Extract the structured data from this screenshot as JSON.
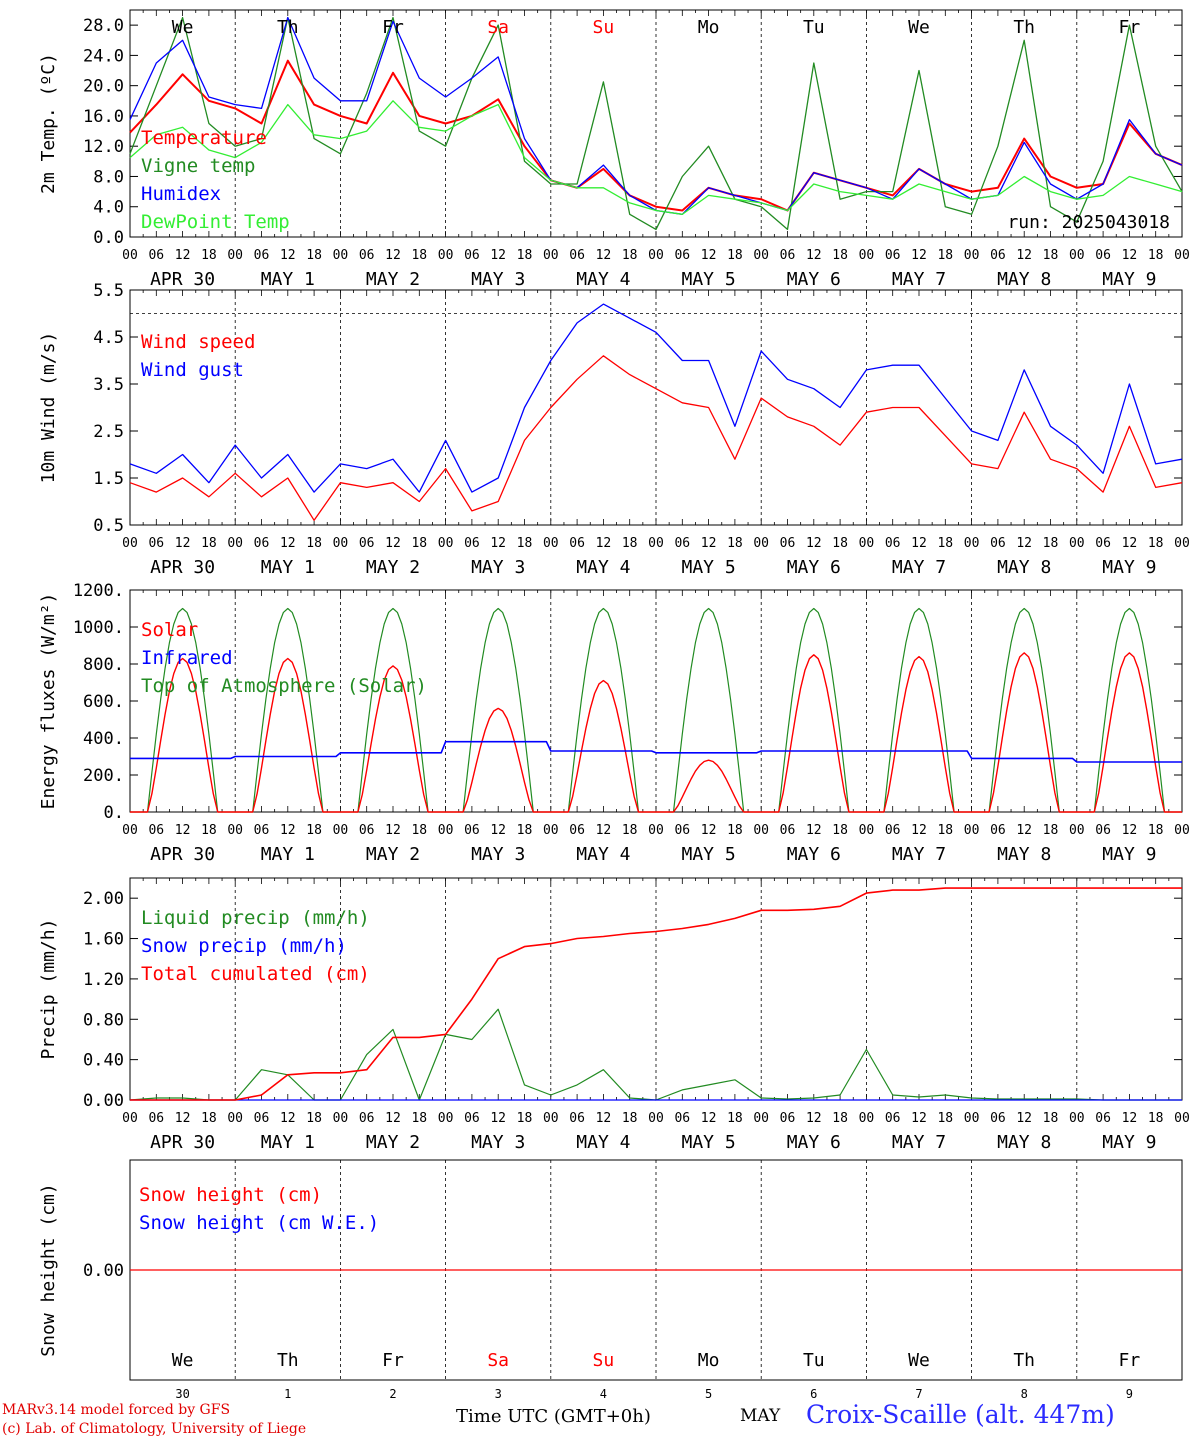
{
  "footer": {
    "credit_line1": "MARv3.14 model forced by GFS",
    "credit_line2": "(c) Lab. of Climatology, University of Liege",
    "xlabel": "Time UTC (GMT+0h)",
    "month": "MAY",
    "station": "Croix-Scaille (alt. 447m)"
  },
  "colors": {
    "red": "#ff0000",
    "green": "#228b22",
    "blue": "#0000ff",
    "lightgreen": "#33ee33",
    "weekend": "#ff0000",
    "weekday": "#000000"
  },
  "days": [
    {
      "abbr": "We",
      "weekend": false,
      "date": "APR 30",
      "daynum": "30"
    },
    {
      "abbr": "Th",
      "weekend": false,
      "date": "MAY  1",
      "daynum": "1"
    },
    {
      "abbr": "Fr",
      "weekend": false,
      "date": "MAY  2",
      "daynum": "2"
    },
    {
      "abbr": "Sa",
      "weekend": true,
      "date": "MAY  3",
      "daynum": "3"
    },
    {
      "abbr": "Su",
      "weekend": true,
      "date": "MAY  4",
      "daynum": "4"
    },
    {
      "abbr": "Mo",
      "weekend": false,
      "date": "MAY  5",
      "daynum": "5"
    },
    {
      "abbr": "Tu",
      "weekend": false,
      "date": "MAY  6",
      "daynum": "6"
    },
    {
      "abbr": "We",
      "weekend": false,
      "date": "MAY  7",
      "daynum": "7"
    },
    {
      "abbr": "Th",
      "weekend": false,
      "date": "MAY  8",
      "daynum": "8"
    },
    {
      "abbr": "Fr",
      "weekend": false,
      "date": "MAY  9",
      "daynum": "9"
    }
  ],
  "hour_ticks": [
    "00",
    "06",
    "12",
    "18"
  ],
  "chart_data": [
    {
      "type": "line",
      "ylabel": "2m Temp. (ºC)",
      "ylim": [
        0,
        30
      ],
      "yticks": [
        "0.0",
        "4.0",
        "8.0",
        "12.0",
        "16.0",
        "20.0",
        "24.0",
        "28.0"
      ],
      "annotation": "run: 2025043018",
      "x_hours": [
        0,
        6,
        12,
        18,
        24,
        30,
        36,
        42,
        48,
        54,
        60,
        66,
        72,
        78,
        84,
        90,
        96,
        102,
        108,
        114,
        120,
        126,
        132,
        138,
        144,
        150,
        156,
        162,
        168,
        174,
        180,
        186,
        192,
        198,
        204,
        210,
        216,
        222,
        228,
        234,
        240
      ],
      "series": [
        {
          "name": "Temperature",
          "color": "#ff0000",
          "values": [
            13.8,
            17.5,
            21.5,
            18.0,
            17.0,
            15.0,
            23.3,
            17.5,
            16.0,
            15.0,
            21.7,
            16.0,
            15.0,
            16.0,
            18.2,
            12.0,
            7.5,
            6.5,
            9.0,
            5.5,
            4.0,
            3.5,
            6.5,
            5.5,
            5.0,
            3.5,
            8.5,
            7.5,
            6.5,
            5.5,
            9.0,
            7.0,
            6.0,
            6.5,
            13.0,
            8.0,
            6.5,
            7.0,
            15.0,
            11.0,
            9.5
          ]
        },
        {
          "name": "Vigne temp",
          "color": "#228b22",
          "values": [
            11.0,
            20.0,
            29.0,
            15.0,
            12.0,
            13.0,
            29.0,
            13.0,
            11.0,
            19.0,
            29.0,
            14.0,
            12.0,
            21.0,
            28.0,
            10.0,
            7.0,
            7.0,
            20.5,
            3.0,
            1.0,
            8.0,
            12.0,
            5.0,
            4.0,
            1.0,
            23.0,
            5.0,
            6.0,
            6.0,
            22.0,
            4.0,
            3.0,
            12.0,
            26.0,
            4.0,
            2.0,
            10.0,
            28.0,
            12.0,
            6.0
          ]
        },
        {
          "name": "Humidex",
          "color": "#0000ff",
          "values": [
            15.5,
            23.0,
            26.0,
            18.5,
            17.5,
            17.0,
            29.0,
            21.0,
            18.0,
            18.0,
            28.5,
            21.0,
            18.5,
            21.0,
            23.8,
            13.0,
            7.5,
            6.5,
            9.5,
            5.5,
            3.5,
            3.0,
            6.5,
            5.5,
            4.5,
            3.5,
            8.5,
            7.5,
            6.5,
            5.0,
            9.0,
            7.0,
            5.0,
            5.5,
            12.5,
            7.0,
            5.0,
            7.0,
            15.5,
            11.0,
            9.5
          ]
        },
        {
          "name": "DewPoint Temp",
          "color": "#33ee33",
          "values": [
            10.5,
            13.5,
            14.5,
            11.5,
            10.5,
            12.5,
            17.5,
            13.5,
            13.0,
            14.0,
            18.0,
            14.5,
            14.0,
            16.0,
            17.5,
            10.5,
            7.5,
            6.5,
            6.5,
            4.5,
            3.5,
            3.0,
            5.5,
            5.0,
            4.5,
            3.5,
            7.0,
            6.0,
            5.5,
            5.0,
            7.0,
            6.0,
            5.0,
            5.5,
            8.0,
            6.0,
            5.0,
            5.5,
            8.0,
            7.0,
            6.0
          ]
        }
      ]
    },
    {
      "type": "line",
      "ylabel": "10m Wind (m/s)",
      "ylim": [
        0.5,
        5.5
      ],
      "yticks": [
        "0.5",
        "1.5",
        "2.5",
        "3.5",
        "4.5",
        "5.5"
      ],
      "reference_line": 5.0,
      "x_hours": [
        0,
        6,
        12,
        18,
        24,
        30,
        36,
        42,
        48,
        54,
        60,
        66,
        72,
        78,
        84,
        90,
        96,
        102,
        108,
        114,
        120,
        126,
        132,
        138,
        144,
        150,
        156,
        162,
        168,
        174,
        180,
        186,
        192,
        198,
        204,
        210,
        216,
        222,
        228,
        234,
        240
      ],
      "series": [
        {
          "name": "Wind speed",
          "color": "#ff0000",
          "values": [
            1.4,
            1.2,
            1.5,
            1.1,
            1.6,
            1.1,
            1.5,
            0.6,
            1.4,
            1.3,
            1.4,
            1.0,
            1.7,
            0.8,
            1.0,
            2.3,
            3.0,
            3.6,
            4.1,
            3.7,
            3.4,
            3.1,
            3.0,
            1.9,
            3.2,
            2.8,
            2.6,
            2.2,
            2.9,
            3.0,
            3.0,
            2.4,
            1.8,
            1.7,
            2.9,
            1.9,
            1.7,
            1.2,
            2.6,
            1.3,
            1.4
          ]
        },
        {
          "name": "Wind gust",
          "color": "#0000ff",
          "values": [
            1.8,
            1.6,
            2.0,
            1.4,
            2.2,
            1.5,
            2.0,
            1.2,
            1.8,
            1.7,
            1.9,
            1.2,
            2.3,
            1.2,
            1.5,
            3.0,
            4.0,
            4.8,
            5.2,
            4.9,
            4.6,
            4.0,
            4.0,
            2.6,
            4.2,
            3.6,
            3.4,
            3.0,
            3.8,
            3.9,
            3.9,
            3.2,
            2.5,
            2.3,
            3.8,
            2.6,
            2.2,
            1.6,
            3.5,
            1.8,
            1.9
          ]
        }
      ]
    },
    {
      "type": "line",
      "ylabel": "Energy fluxes (W/m²)",
      "ylim": [
        0,
        1200
      ],
      "yticks": [
        "0.",
        "200.",
        "400.",
        "600.",
        "800.",
        "1000.",
        "1200."
      ],
      "solar_peaks": [
        830,
        830,
        790,
        560,
        710,
        280,
        850,
        840,
        860,
        860
      ],
      "infrared_level": [
        290,
        300,
        320,
        380,
        330,
        320,
        330,
        330,
        290,
        270
      ],
      "toa_peak": 1100,
      "series": [
        {
          "name": "Solar",
          "color": "#ff0000"
        },
        {
          "name": "Infrared",
          "color": "#0000ff"
        },
        {
          "name": "Top of Atmosphere (Solar)",
          "color": "#228b22"
        }
      ]
    },
    {
      "type": "line",
      "ylabel": "Precip (mm/h)",
      "ylim": [
        0,
        2.2
      ],
      "yticks": [
        "0.00",
        "0.40",
        "0.80",
        "1.20",
        "1.60",
        "2.00"
      ],
      "x_hours": [
        0,
        6,
        12,
        18,
        24,
        30,
        36,
        42,
        48,
        54,
        60,
        66,
        72,
        78,
        84,
        90,
        96,
        102,
        108,
        114,
        120,
        126,
        132,
        138,
        144,
        150,
        156,
        162,
        168,
        174,
        180,
        186,
        192,
        198,
        204,
        210,
        216,
        222,
        228,
        234,
        240
      ],
      "series": [
        {
          "name": "Liquid precip (mm/h)",
          "color": "#228b22",
          "values": [
            0,
            0.02,
            0.02,
            0,
            0,
            0.3,
            0.25,
            0,
            0,
            0.45,
            0.7,
            0,
            0.65,
            0.6,
            0.9,
            0.15,
            0.05,
            0.15,
            0.3,
            0.02,
            0,
            0.1,
            0.15,
            0.2,
            0.02,
            0.01,
            0.02,
            0.05,
            0.5,
            0.05,
            0.03,
            0.05,
            0.02,
            0.01,
            0.01,
            0.01,
            0.01,
            0,
            0,
            0,
            0
          ]
        },
        {
          "name": "Snow precip (mm/h)",
          "color": "#0000ff",
          "values": [
            0,
            0,
            0,
            0,
            0,
            0,
            0,
            0,
            0,
            0,
            0,
            0,
            0,
            0,
            0,
            0,
            0,
            0,
            0,
            0,
            0,
            0,
            0,
            0,
            0,
            0,
            0,
            0,
            0,
            0,
            0,
            0,
            0,
            0,
            0,
            0,
            0,
            0,
            0,
            0,
            0
          ]
        },
        {
          "name": "Total cumulated (cm)",
          "color": "#ff0000",
          "values": [
            0,
            0,
            0,
            0,
            0,
            0.05,
            0.25,
            0.27,
            0.27,
            0.3,
            0.62,
            0.62,
            0.65,
            1.0,
            1.4,
            1.52,
            1.55,
            1.6,
            1.62,
            1.65,
            1.67,
            1.7,
            1.74,
            1.8,
            1.88,
            1.88,
            1.89,
            1.92,
            2.05,
            2.08,
            2.08,
            2.1,
            2.1,
            2.1,
            2.1,
            2.1,
            2.1,
            2.1,
            2.1,
            2.1,
            2.1
          ]
        }
      ]
    },
    {
      "type": "line",
      "ylabel": "Snow height (cm)",
      "yticks": [
        "0.00"
      ],
      "series": [
        {
          "name": "Snow height (cm)",
          "color": "#ff0000",
          "values": [
            0,
            0
          ]
        },
        {
          "name": "Snow height (cm W.E.)",
          "color": "#0000ff",
          "values": [
            0,
            0
          ]
        }
      ]
    }
  ]
}
